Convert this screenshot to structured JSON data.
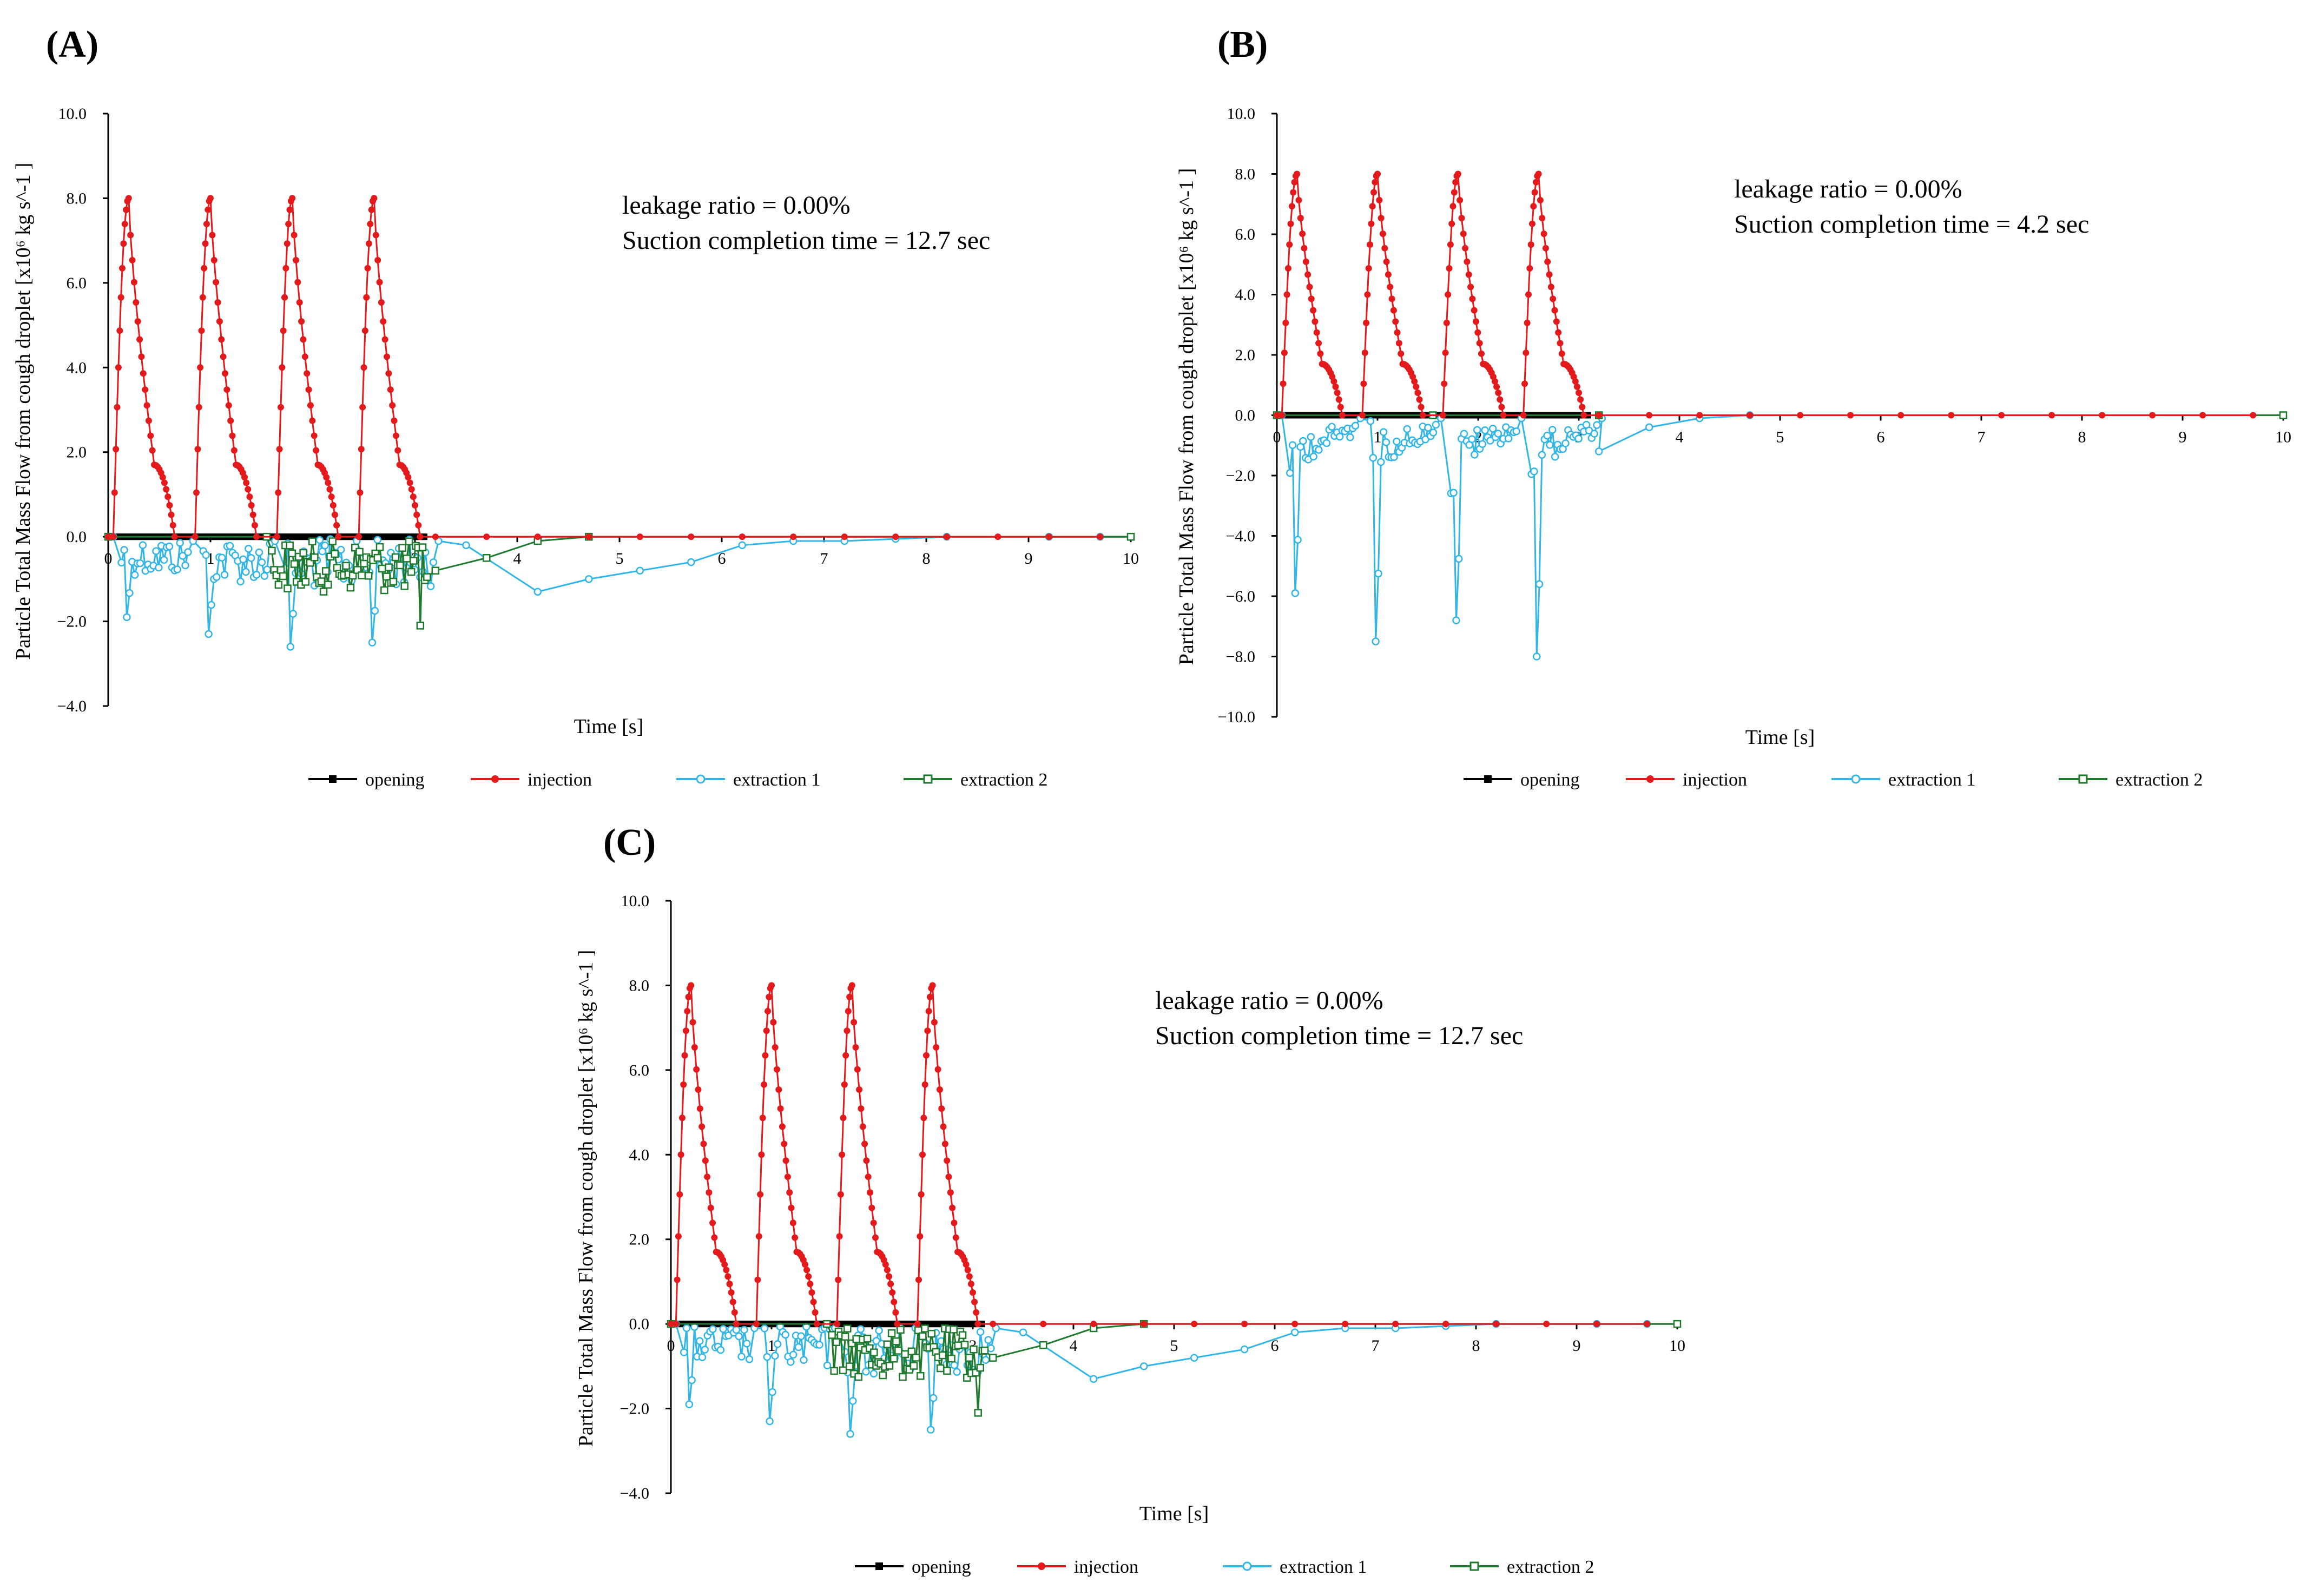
{
  "chart_data": [
    {
      "type": "line",
      "panel": "(A)",
      "xlabel": "Time [s]",
      "ylabel": "Particle Total Mass Flow from cough droplet [x10⁶ kg s^-1 ]",
      "xlim": [
        0,
        10
      ],
      "ylim": [
        -4,
        10
      ],
      "xticks": [
        "0",
        "1",
        "2",
        "3",
        "4",
        "5",
        "6",
        "7",
        "8",
        "9",
        "10"
      ],
      "yticks": [
        "10.0",
        "8.0",
        "6.0",
        "4.0",
        "2.0",
        "0.0",
        "−2.0",
        "−4.0"
      ],
      "ytick_values": [
        10,
        8,
        6,
        4,
        2,
        0,
        -2,
        -4
      ],
      "annotations": [
        "leakage ratio = 0.00%",
        "Suction completion time = 12.7 sec"
      ],
      "legend": [
        "opening",
        "injection",
        "extraction 1",
        "extraction 2"
      ],
      "peak_injection": 8.0,
      "extraction1_min": [
        -1.9,
        -2.3,
        -2.6,
        -2.5
      ],
      "extraction1_tail": [
        [
          3.5,
          -0.2
        ],
        [
          4.2,
          -1.3
        ],
        [
          4.7,
          -1.0
        ],
        [
          5.2,
          -0.8
        ],
        [
          5.7,
          -0.6
        ],
        [
          6.2,
          -0.2
        ],
        [
          6.7,
          -0.1
        ],
        [
          7.2,
          -0.1
        ],
        [
          7.7,
          -0.05
        ],
        [
          8.2,
          0
        ],
        [
          9.2,
          0
        ],
        [
          9.7,
          0
        ]
      ],
      "extraction2_min": -2.1,
      "extraction2_tail": [
        [
          3.2,
          -0.8
        ],
        [
          3.7,
          -0.5
        ],
        [
          4.2,
          -0.1
        ],
        [
          4.7,
          0
        ],
        [
          10,
          0
        ]
      ]
    },
    {
      "type": "line",
      "panel": "(B)",
      "xlabel": "Time [s]",
      "ylabel": "Particle Total Mass Flow from cough droplet [x10⁶ kg s^-1 ]",
      "xlim": [
        0,
        10
      ],
      "ylim": [
        -10,
        10
      ],
      "xticks": [
        "0",
        "1",
        "2",
        "3",
        "4",
        "5",
        "6",
        "7",
        "8",
        "9",
        "10"
      ],
      "yticks": [
        "10.0",
        "8.0",
        "6.0",
        "4.0",
        "2.0",
        "0.0",
        "−2.0",
        "−4.0",
        "−6.0",
        "−8.0",
        "−10.0"
      ],
      "ytick_values": [
        10,
        8,
        6,
        4,
        2,
        0,
        -2,
        -4,
        -6,
        -8,
        -10
      ],
      "annotations": [
        "leakage ratio = 0.00%",
        "Suction completion time = 4.2 sec"
      ],
      "legend": [
        "opening",
        "injection",
        "extraction 1",
        "extraction 2"
      ],
      "peak_injection": 8.0,
      "extraction1_min": [
        -5.9,
        -7.5,
        -6.8,
        -8.0
      ],
      "extraction1_tail": [
        [
          3.2,
          -1.2
        ],
        [
          3.7,
          -0.4
        ],
        [
          4.2,
          -0.1
        ],
        [
          4.7,
          0
        ],
        [
          10,
          0
        ]
      ],
      "extraction2_min": 0,
      "extraction2_tail": [
        [
          3.2,
          0
        ],
        [
          10,
          0
        ]
      ]
    },
    {
      "type": "line",
      "panel": "(C)",
      "xlabel": "Time [s]",
      "ylabel": "Particle Total Mass Flow from cough droplet [x10⁶ kg s^-1 ]",
      "xlim": [
        0,
        10
      ],
      "ylim": [
        -4,
        10
      ],
      "xticks": [
        "0",
        "1",
        "2",
        "3",
        "4",
        "5",
        "6",
        "7",
        "8",
        "9",
        "10"
      ],
      "yticks": [
        "10.0",
        "8.0",
        "6.0",
        "4.0",
        "2.0",
        "0.0",
        "−2.0",
        "−4.0"
      ],
      "ytick_values": [
        10,
        8,
        6,
        4,
        2,
        0,
        -2,
        -4
      ],
      "annotations": [
        "leakage ratio = 0.00%",
        "Suction completion time = 12.7 sec"
      ],
      "legend": [
        "opening",
        "injection",
        "extraction 1",
        "extraction 2"
      ],
      "peak_injection": 8.0,
      "extraction1_min": [
        -1.9,
        -2.3,
        -2.6,
        -2.5
      ],
      "extraction1_tail": [
        [
          3.5,
          -0.2
        ],
        [
          4.2,
          -1.3
        ],
        [
          4.7,
          -1.0
        ],
        [
          5.2,
          -0.8
        ],
        [
          5.7,
          -0.6
        ],
        [
          6.2,
          -0.2
        ],
        [
          6.7,
          -0.1
        ],
        [
          7.2,
          -0.1
        ],
        [
          7.7,
          -0.05
        ],
        [
          8.2,
          0
        ],
        [
          9.2,
          0
        ],
        [
          9.7,
          0
        ]
      ],
      "extraction2_min": -2.1,
      "extraction2_tail": [
        [
          3.2,
          -0.8
        ],
        [
          3.7,
          -0.5
        ],
        [
          4.2,
          -0.1
        ],
        [
          4.7,
          0
        ],
        [
          10,
          0
        ]
      ]
    }
  ],
  "colors": {
    "opening": "#000000",
    "injection": "#e31a1c",
    "extraction1": "#33b5e5",
    "extraction2": "#1f7a2e"
  }
}
